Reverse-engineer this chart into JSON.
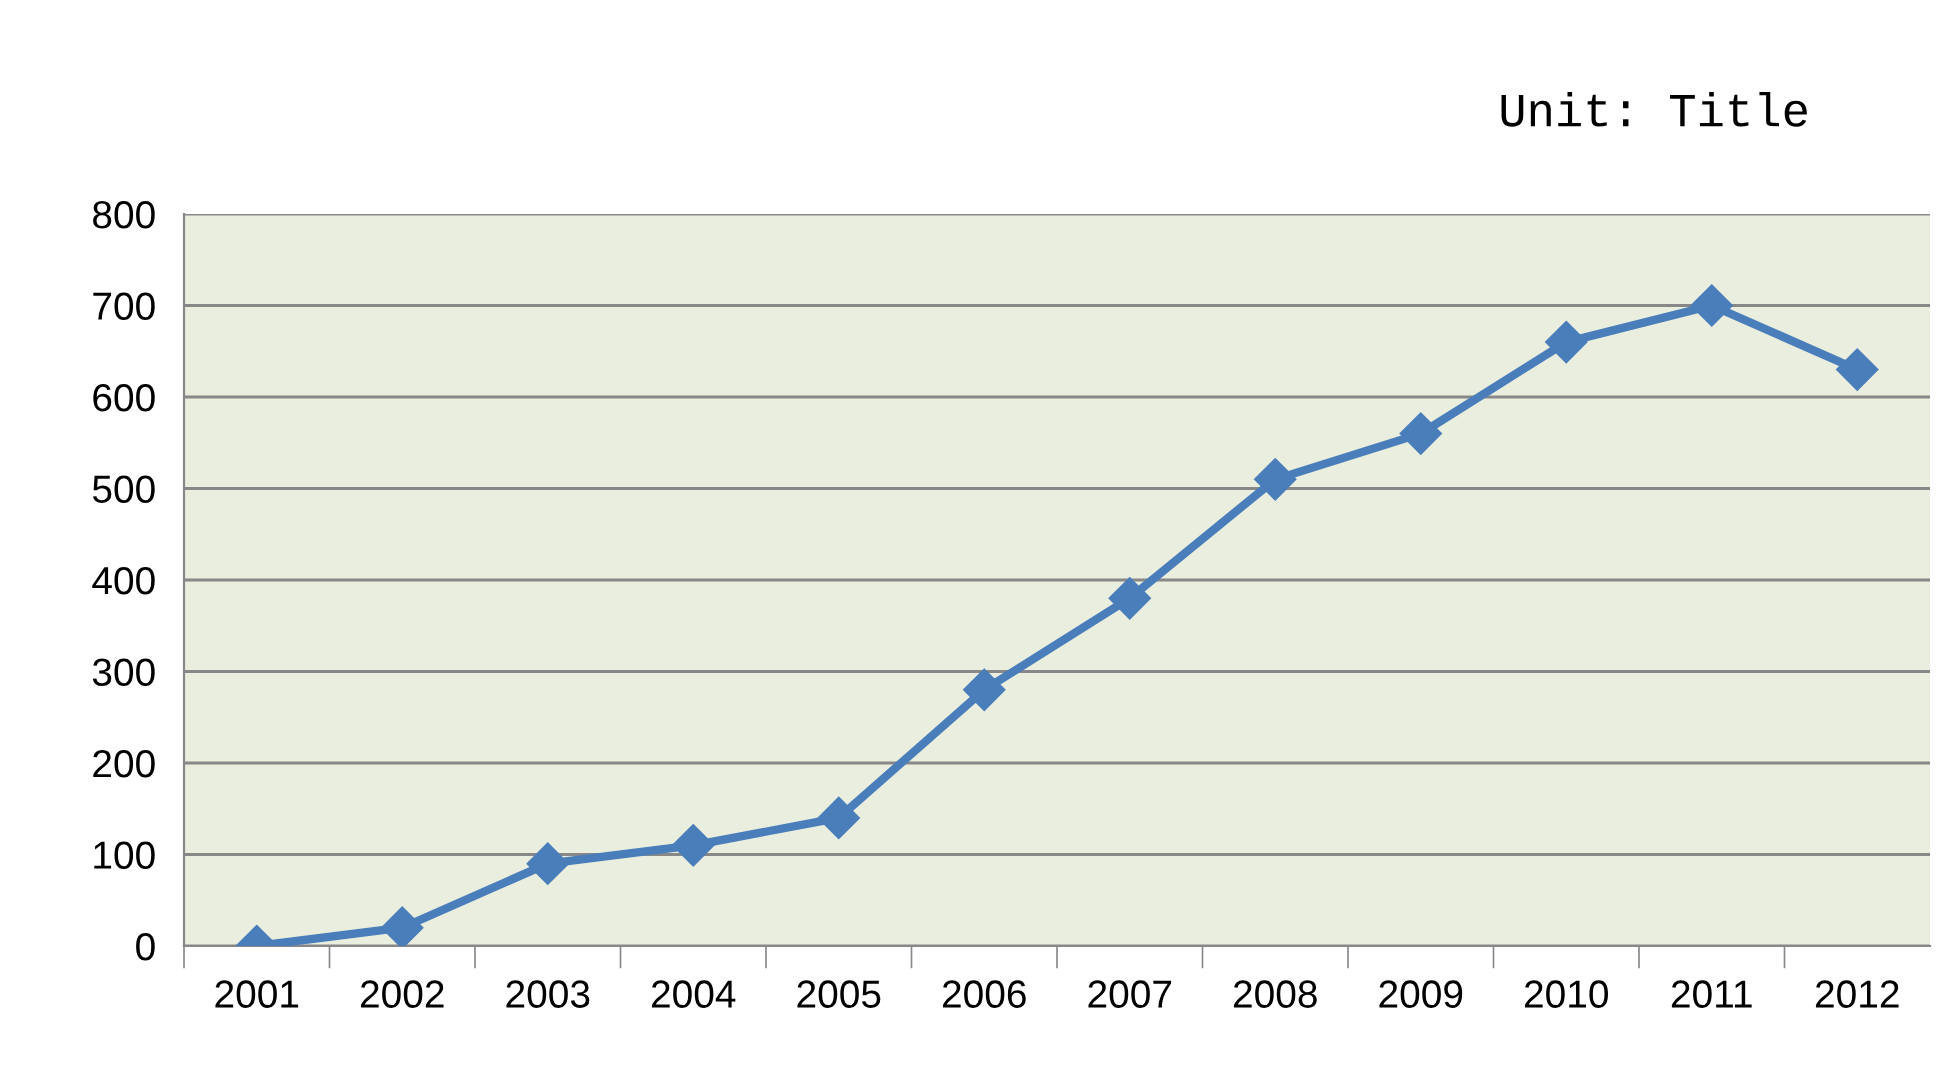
{
  "chart_data": {
    "type": "line",
    "title": "Unit: Title",
    "categories": [
      "2001",
      "2002",
      "2003",
      "2004",
      "2005",
      "2006",
      "2007",
      "2008",
      "2009",
      "2010",
      "2011",
      "2012"
    ],
    "series": [
      {
        "color": "#4a7ebb",
        "values": [
          0,
          20,
          90,
          110,
          140,
          280,
          380,
          510,
          560,
          660,
          700,
          630
        ]
      }
    ],
    "ylim": [
      0,
      800
    ],
    "yticks": [
      0,
      100,
      200,
      300,
      400,
      500,
      600,
      700,
      800
    ],
    "grid": "y",
    "legend": false,
    "marker": "diamond",
    "line_style": "solid"
  }
}
